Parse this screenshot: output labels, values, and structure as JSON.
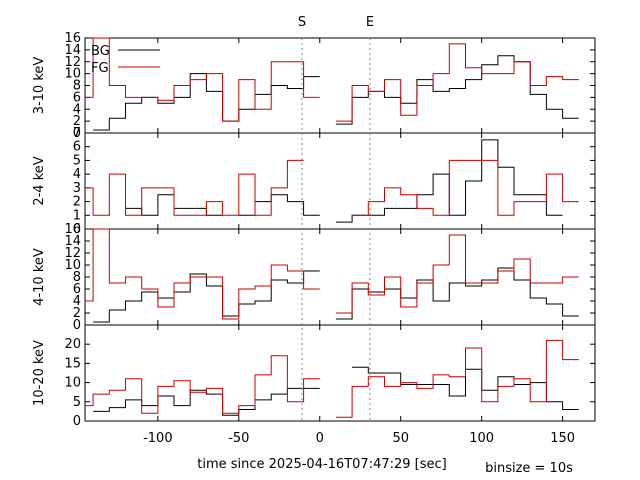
{
  "chart_data": {
    "type": "line",
    "step": true,
    "xlabel": "time since 2025-04-16T07:47:29 [sec]",
    "binsize_label": "binsize = 10s",
    "xlim": [
      -145,
      170
    ],
    "xticks": [
      -100,
      -50,
      0,
      50,
      100,
      150
    ],
    "x": [
      -145,
      -135,
      -125,
      -115,
      -105,
      -95,
      -85,
      -75,
      -65,
      -55,
      -45,
      -35,
      -25,
      -15,
      -5,
      5,
      15,
      25,
      35,
      45,
      55,
      65,
      75,
      85,
      95,
      105,
      115,
      125,
      135,
      145,
      155,
      165
    ],
    "markers": [
      {
        "label": "S",
        "x": -11
      },
      {
        "label": "E",
        "x": 31
      }
    ],
    "legend": {
      "position": "top-left",
      "entries": [
        {
          "name": "BG",
          "color": "#000000"
        },
        {
          "name": "FG",
          "color": "#cc0000"
        }
      ]
    },
    "panels": [
      {
        "ylabel": "3-10 keV",
        "ylim": [
          0,
          16
        ],
        "yticks": [
          0,
          2,
          4,
          6,
          8,
          10,
          12,
          14,
          16
        ],
        "series": [
          {
            "name": "BG",
            "color": "#000000",
            "values": [
              null,
              0.5,
              2.5,
              5,
              6,
              5,
              6,
              10,
              7,
              2,
              4,
              6.5,
              8,
              7.5,
              9.5,
              null,
              1.5,
              6,
              7,
              6,
              5,
              9,
              7,
              7.5,
              9,
              11.5,
              13,
              12,
              6.5,
              4,
              2.5,
              null
            ]
          },
          {
            "name": "FG",
            "color": "#cc0000",
            "values": [
              6,
              16,
              8,
              6,
              6,
              5.5,
              8,
              9,
              10,
              2,
              9,
              4,
              12,
              12,
              6,
              null,
              2,
              8,
              7,
              9,
              3,
              8,
              10,
              15,
              11,
              10,
              10,
              12,
              8,
              9.5,
              9,
              null
            ]
          }
        ]
      },
      {
        "ylabel": "2-4 keV",
        "ylim": [
          0,
          7
        ],
        "yticks": [
          0,
          1,
          2,
          3,
          4,
          5,
          6,
          7
        ],
        "series": [
          {
            "name": "BG",
            "color": "#000000",
            "values": [
              null,
              null,
              null,
              1.5,
              1,
              2.5,
              1.5,
              1.5,
              1,
              null,
              1,
              2,
              2.5,
              2,
              1,
              null,
              0.5,
              1,
              1,
              1.5,
              1.5,
              2.5,
              4,
              1,
              3.5,
              6.5,
              4.5,
              2.5,
              2.5,
              1,
              null,
              null
            ]
          },
          {
            "name": "FG",
            "color": "#cc0000",
            "values": [
              3,
              1,
              4,
              1,
              3,
              3,
              1,
              1,
              2,
              1,
              4,
              1,
              3,
              5,
              null,
              null,
              null,
              1,
              2,
              3,
              2.5,
              1.5,
              1,
              5,
              5,
              5,
              1,
              2,
              2,
              4,
              2,
              null
            ]
          }
        ]
      },
      {
        "ylabel": "4-10 keV",
        "ylim": [
          0,
          16
        ],
        "yticks": [
          0,
          2,
          4,
          6,
          8,
          10,
          12,
          14,
          16
        ],
        "series": [
          {
            "name": "BG",
            "color": "#000000",
            "values": [
              null,
              0.5,
              2.5,
              4,
              5.5,
              4.5,
              5.5,
              8.5,
              6.5,
              1.5,
              3.5,
              4,
              7.5,
              7,
              9,
              null,
              1,
              6,
              5.5,
              6,
              4.5,
              7.5,
              4,
              7,
              6.5,
              7.5,
              9.5,
              7.5,
              4.5,
              3.5,
              1.5,
              null
            ]
          },
          {
            "name": "FG",
            "color": "#cc0000",
            "values": [
              4,
              16,
              7,
              8,
              6,
              3,
              7,
              8,
              8,
              1,
              6,
              6.5,
              10,
              9,
              6,
              null,
              2,
              7,
              5,
              8,
              3,
              7,
              10,
              15,
              7,
              7,
              9,
              11,
              7,
              7,
              8,
              null
            ]
          }
        ]
      },
      {
        "ylabel": "10-20 keV",
        "ylim": [
          0,
          25
        ],
        "yticks": [
          0,
          5,
          10,
          15,
          20
        ],
        "series": [
          {
            "name": "BG",
            "color": "#000000",
            "values": [
              null,
              2.5,
              3.5,
              5.5,
              4,
              6.5,
              4,
              8,
              7,
              1.5,
              3,
              5.5,
              7,
              8.5,
              8.5,
              null,
              null,
              14,
              12.5,
              12.5,
              9.5,
              9.5,
              9.5,
              6.5,
              13.5,
              8,
              11.5,
              9.5,
              10,
              5,
              3,
              null
            ]
          },
          {
            "name": "FG",
            "color": "#cc0000",
            "values": [
              4,
              7,
              8,
              11,
              2,
              9,
              10.5,
              7.5,
              8.5,
              2,
              4,
              12,
              17,
              5,
              11,
              null,
              1,
              9,
              11.5,
              9,
              10,
              8.5,
              12,
              11.5,
              19,
              5,
              9,
              11,
              5,
              21,
              16,
              null
            ]
          }
        ]
      }
    ]
  }
}
